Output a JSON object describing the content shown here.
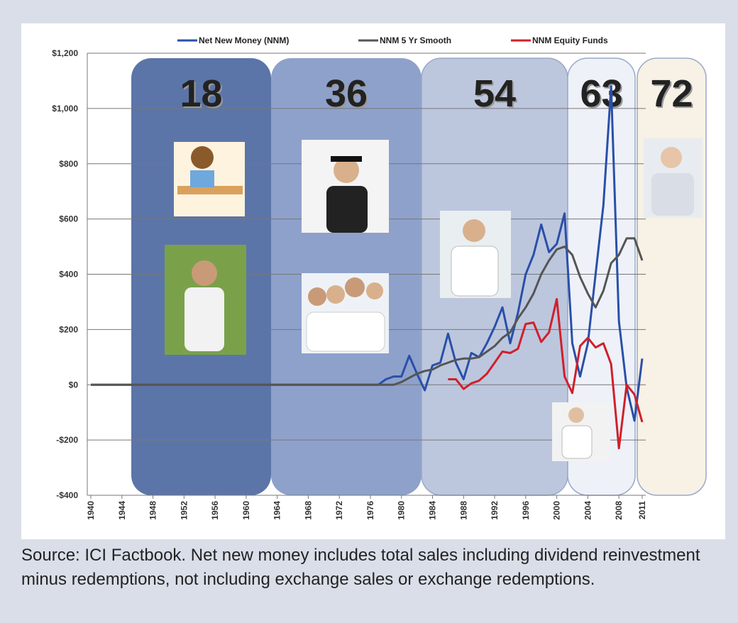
{
  "chart_data": {
    "type": "line",
    "note": "Source: ICI Factbook.  Net new money includes total sales including dividend reinvestment minus redemptions, not including exchange sales or exchange redemptions.",
    "bands": [
      {
        "label": "18"
      },
      {
        "label": "36"
      },
      {
        "label": "54"
      },
      {
        "label": "63"
      },
      {
        "label": "72"
      }
    ],
    "x": [
      1940,
      1941,
      1942,
      1943,
      1944,
      1945,
      1946,
      1947,
      1948,
      1949,
      1950,
      1951,
      1952,
      1953,
      1954,
      1955,
      1956,
      1957,
      1958,
      1959,
      1960,
      1961,
      1962,
      1963,
      1964,
      1965,
      1966,
      1967,
      1968,
      1969,
      1970,
      1971,
      1972,
      1973,
      1974,
      1975,
      1976,
      1977,
      1978,
      1979,
      1980,
      1981,
      1982,
      1983,
      1984,
      1985,
      1986,
      1987,
      1988,
      1989,
      1990,
      1991,
      1992,
      1993,
      1994,
      1995,
      1996,
      1997,
      1998,
      1999,
      2000,
      2001,
      2002,
      2003,
      2004,
      2005,
      2006,
      2007,
      2008,
      2009,
      2010,
      2011
    ],
    "xlim": [
      1940,
      2011
    ],
    "xticks": [
      1940,
      1944,
      1948,
      1952,
      1956,
      1960,
      1964,
      1968,
      1972,
      1976,
      1980,
      1984,
      1988,
      1992,
      1996,
      2000,
      2004,
      2008,
      2011
    ],
    "ylim": [
      -400,
      1200
    ],
    "yticks": [
      {
        "value": -400,
        "label": "-$400"
      },
      {
        "value": -200,
        "label": "-$200"
      },
      {
        "value": 0,
        "label": "$0"
      },
      {
        "value": 200,
        "label": "$200"
      },
      {
        "value": 400,
        "label": "$400"
      },
      {
        "value": 600,
        "label": "$600"
      },
      {
        "value": 800,
        "label": "$800"
      },
      {
        "value": 1000,
        "label": "$1,000"
      },
      {
        "value": 1200,
        "label": "$1,200"
      }
    ],
    "grid": true,
    "legend": "top",
    "series": [
      {
        "name": "Net New Money (NNM)",
        "color": "#2a4fa8",
        "values": [
          0,
          0,
          0,
          0,
          0,
          0,
          0,
          0,
          0,
          0,
          0,
          0,
          0,
          0,
          0,
          0,
          0,
          0,
          0,
          0,
          0,
          0,
          0,
          0,
          0,
          0,
          0,
          0,
          0,
          0,
          0,
          0,
          0,
          0,
          0,
          0,
          0,
          0,
          20,
          30,
          30,
          105,
          40,
          -20,
          70,
          80,
          185,
          80,
          20,
          115,
          100,
          150,
          210,
          280,
          150,
          260,
          400,
          470,
          580,
          480,
          510,
          620,
          150,
          30,
          150,
          400,
          650,
          1080,
          230,
          -10,
          -130,
          95
        ]
      },
      {
        "name": "NNM 5 Yr Smooth",
        "color": "#555555",
        "values": [
          0,
          0,
          0,
          0,
          0,
          0,
          0,
          0,
          0,
          0,
          0,
          0,
          0,
          0,
          0,
          0,
          0,
          0,
          0,
          0,
          0,
          0,
          0,
          0,
          0,
          0,
          0,
          0,
          0,
          0,
          0,
          0,
          0,
          0,
          0,
          0,
          0,
          0,
          0,
          0,
          10,
          25,
          40,
          50,
          55,
          70,
          80,
          90,
          95,
          95,
          100,
          120,
          140,
          170,
          190,
          240,
          280,
          330,
          400,
          450,
          490,
          500,
          470,
          390,
          330,
          280,
          340,
          440,
          470,
          530,
          530,
          450
        ]
      },
      {
        "name": "NNM Equity Funds",
        "color": "#d0202a",
        "values": [
          null,
          null,
          null,
          null,
          null,
          null,
          null,
          null,
          null,
          null,
          null,
          null,
          null,
          null,
          null,
          null,
          null,
          null,
          null,
          null,
          null,
          null,
          null,
          null,
          null,
          null,
          null,
          null,
          null,
          null,
          null,
          null,
          null,
          null,
          null,
          null,
          null,
          null,
          null,
          null,
          null,
          null,
          null,
          null,
          null,
          null,
          20,
          20,
          -15,
          5,
          15,
          40,
          80,
          120,
          115,
          130,
          220,
          225,
          155,
          190,
          310,
          30,
          -30,
          140,
          170,
          135,
          150,
          75,
          -230,
          0,
          -35,
          -135
        ]
      }
    ]
  }
}
